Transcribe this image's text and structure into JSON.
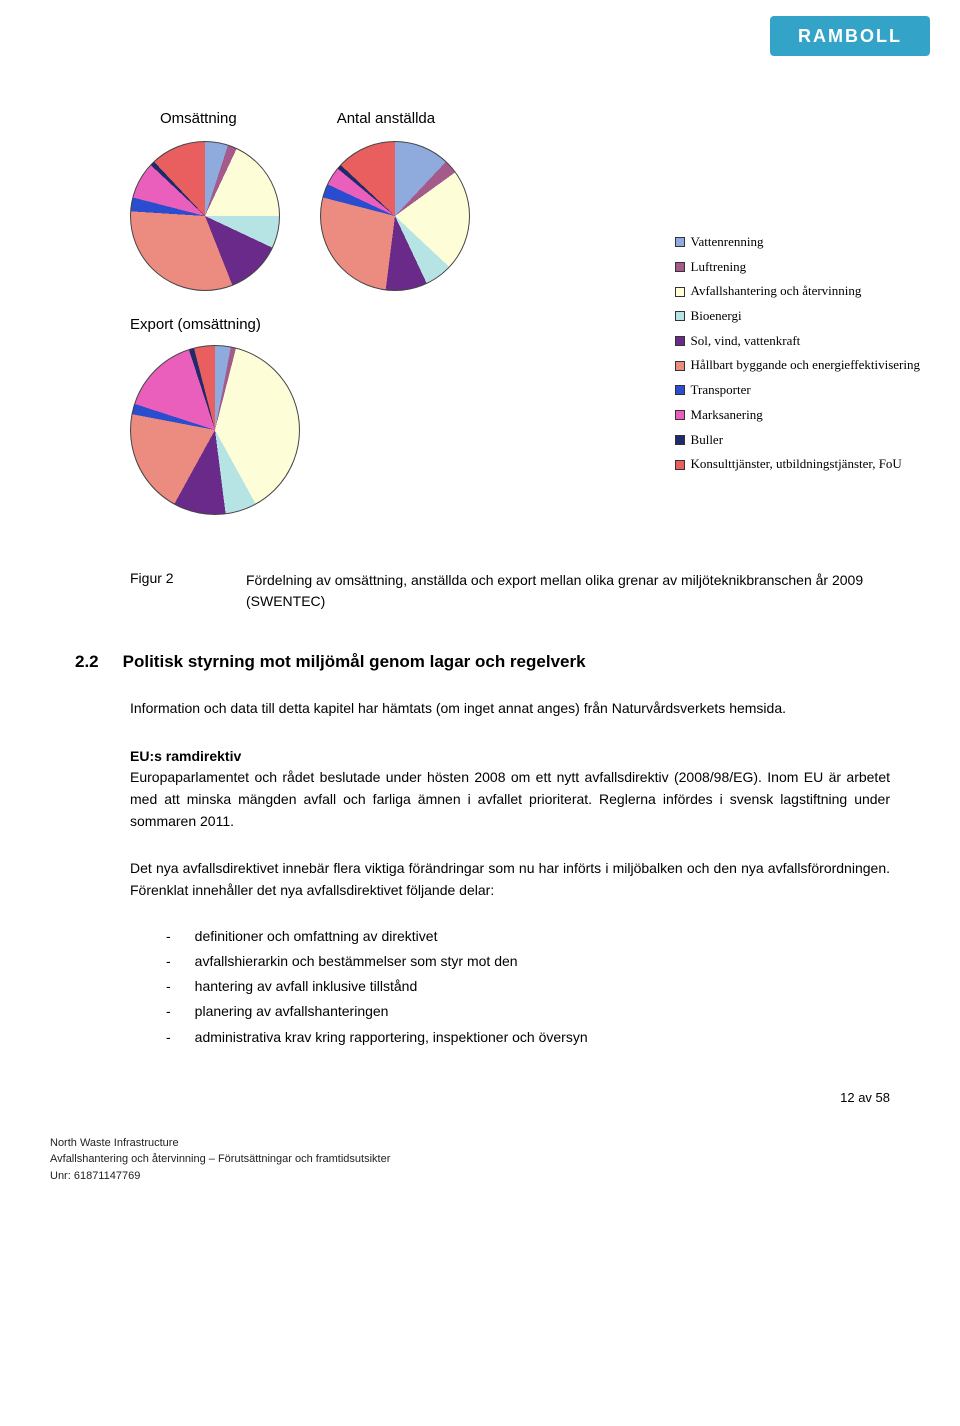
{
  "logo": {
    "text": "RAMBOLL"
  },
  "chart_titles": {
    "omsattning": "Omsättning",
    "anstallda": "Antal anställda"
  },
  "export_label": "Export (omsättning)",
  "legend": {
    "items": [
      {
        "color": "#8faadc",
        "label": "Vattenrenning"
      },
      {
        "color": "#a45a8a",
        "label": "Luftrening"
      },
      {
        "color": "#fdfdd8",
        "label": "Avfallshantering och återvinning"
      },
      {
        "color": "#b6e3e3",
        "label": "Bioenergi"
      },
      {
        "color": "#6a2a8a",
        "label": "Sol, vind, vattenkraft"
      },
      {
        "color": "#ec8b80",
        "label": "Hållbart byggande och energieffektivisering"
      },
      {
        "color": "#2a4dd0",
        "label": "Transporter"
      },
      {
        "color": "#e95fbb",
        "label": "Marksanering"
      },
      {
        "color": "#1f2a6a",
        "label": "Buller"
      },
      {
        "color": "#e95f5f",
        "label": "Konsulttjänster, utbildningstjänster, FoU"
      }
    ]
  },
  "pie_omsattning": {
    "type": "pie",
    "background_color": "#ffffff",
    "slices": [
      {
        "color": "#8faadc",
        "value": 5
      },
      {
        "color": "#a45a8a",
        "value": 2
      },
      {
        "color": "#fdfdd8",
        "value": 18
      },
      {
        "color": "#b6e3e3",
        "value": 7
      },
      {
        "color": "#6a2a8a",
        "value": 12
      },
      {
        "color": "#ec8b80",
        "value": 32
      },
      {
        "color": "#2a4dd0",
        "value": 3
      },
      {
        "color": "#e95fbb",
        "value": 8
      },
      {
        "color": "#1f2a6a",
        "value": 1
      },
      {
        "color": "#e95f5f",
        "value": 12
      }
    ]
  },
  "pie_anstallda": {
    "type": "pie",
    "background_color": "#ffffff",
    "slices": [
      {
        "color": "#8faadc",
        "value": 12
      },
      {
        "color": "#a45a8a",
        "value": 3
      },
      {
        "color": "#fdfdd8",
        "value": 22
      },
      {
        "color": "#b6e3e3",
        "value": 6
      },
      {
        "color": "#6a2a8a",
        "value": 9
      },
      {
        "color": "#ec8b80",
        "value": 27
      },
      {
        "color": "#2a4dd0",
        "value": 3
      },
      {
        "color": "#e95fbb",
        "value": 4
      },
      {
        "color": "#1f2a6a",
        "value": 1
      },
      {
        "color": "#e95f5f",
        "value": 13
      }
    ]
  },
  "pie_export": {
    "type": "pie",
    "background_color": "#ffffff",
    "slices": [
      {
        "color": "#8faadc",
        "value": 3
      },
      {
        "color": "#a45a8a",
        "value": 1
      },
      {
        "color": "#fdfdd8",
        "value": 38
      },
      {
        "color": "#b6e3e3",
        "value": 6
      },
      {
        "color": "#6a2a8a",
        "value": 10
      },
      {
        "color": "#ec8b80",
        "value": 20
      },
      {
        "color": "#2a4dd0",
        "value": 2
      },
      {
        "color": "#e95fbb",
        "value": 15
      },
      {
        "color": "#1f2a6a",
        "value": 1
      },
      {
        "color": "#e95f5f",
        "value": 4
      }
    ]
  },
  "figure": {
    "label": "Figur 2",
    "caption": "Fördelning av omsättning, anställda och export mellan olika grenar av miljöteknikbranschen år 2009 (SWENTEC)"
  },
  "section": {
    "number": "2.2",
    "title": "Politisk styrning mot miljömål genom lagar och regelverk"
  },
  "paragraphs": {
    "intro": "Information och data till detta kapitel har hämtats (om inget annat anges) från Naturvårdsverkets hemsida.",
    "ram_heading": "EU:s ramdirektiv",
    "ram_body": "Europaparlamentet och rådet beslutade under hösten 2008 om ett nytt avfallsdirektiv (2008/98/EG). Inom EU är arbetet med att minska mängden avfall och farliga ämnen i avfallet prioriterat. Reglerna infördes i svensk lagstiftning under sommaren 2011.",
    "p2": "Det nya avfallsdirektivet innebär flera viktiga förändringar som nu har införts i miljöbalken och den nya avfallsförordningen. Förenklat innehåller det nya avfallsdirektivet följande delar:"
  },
  "bullets": [
    "definitioner och omfattning av direktivet",
    "avfallshierarkin och bestämmelser som styr mot den",
    "hantering av avfall inklusive tillstånd",
    "planering av avfallshanteringen",
    "administrativa krav kring rapportering, inspektioner och översyn"
  ],
  "page_num": "12 av 58",
  "footer": {
    "l1": "North Waste Infrastructure",
    "l2": "Avfallshantering och återvinning – Förutsättningar och framtidsutsikter",
    "l3": "Unr: 61871147769"
  }
}
